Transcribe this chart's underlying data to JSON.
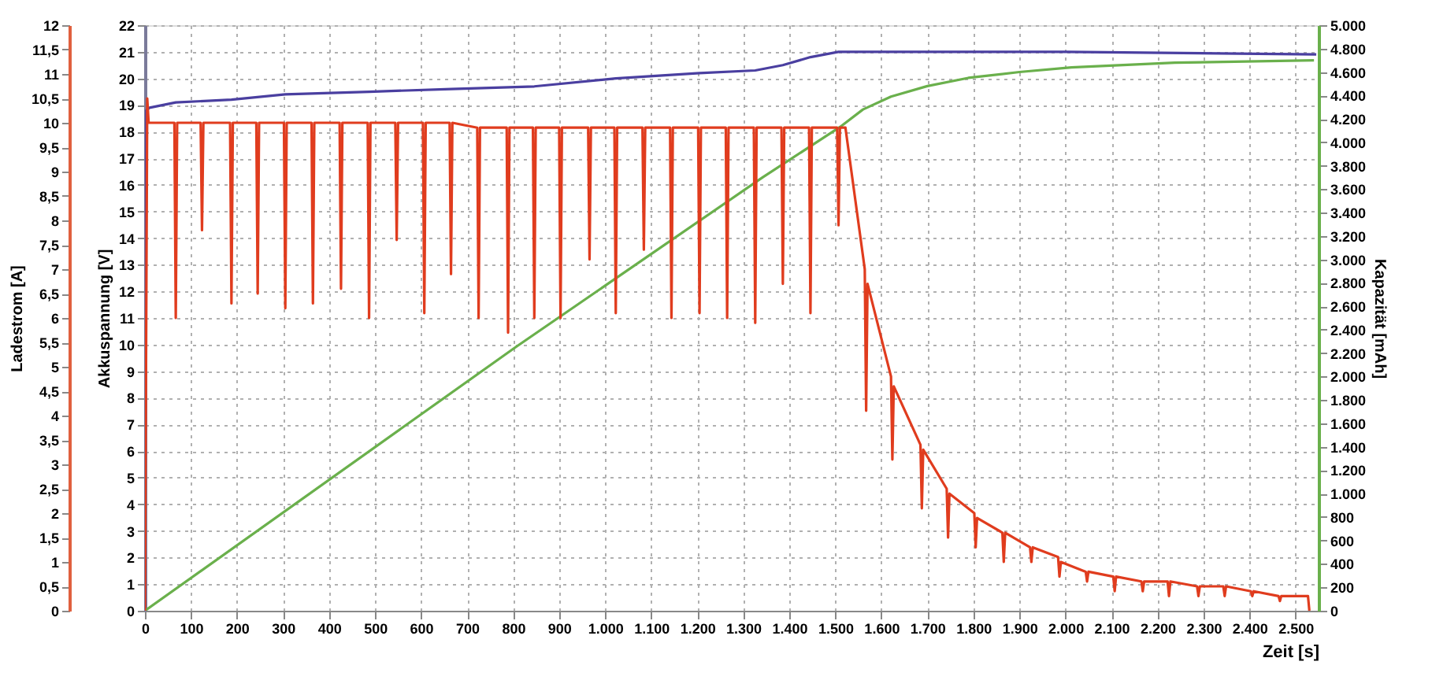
{
  "chart_data": {
    "type": "line",
    "xlabel": "Zeit [s]",
    "ylabel": "Akkuspannung [V]",
    "y2label": "Kapazität [mAh]",
    "y3label": "Ladestrom [A]",
    "grid": true,
    "xlim": [
      0,
      2550
    ],
    "xticks": [
      0,
      100,
      200,
      300,
      400,
      500,
      600,
      700,
      800,
      900,
      {
        "value": 1000,
        "label": "1.000"
      },
      {
        "value": 1100,
        "label": "1.100"
      },
      {
        "value": 1200,
        "label": "1.200"
      },
      {
        "value": 1300,
        "label": "1.300"
      },
      {
        "value": 1400,
        "label": "1.400"
      },
      {
        "value": 1500,
        "label": "1.500"
      },
      {
        "value": 1600,
        "label": "1.600"
      },
      {
        "value": 1700,
        "label": "1.700"
      },
      {
        "value": 1800,
        "label": "1.800"
      },
      {
        "value": 1900,
        "label": "1.900"
      },
      {
        "value": 2000,
        "label": "2.000"
      },
      {
        "value": 2100,
        "label": "2.100"
      },
      {
        "value": 2200,
        "label": "2.200"
      },
      {
        "value": 2300,
        "label": "2.300"
      },
      {
        "value": 2400,
        "label": "2.400"
      },
      {
        "value": 2500,
        "label": "2.500"
      }
    ],
    "ylim": [
      0,
      22
    ],
    "yticks": [
      0,
      1,
      2,
      3,
      4,
      5,
      6,
      7,
      8,
      9,
      10,
      11,
      12,
      13,
      14,
      15,
      16,
      17,
      18,
      19,
      20,
      21,
      22
    ],
    "y2lim": [
      0,
      5000
    ],
    "y2ticks": [
      0,
      200,
      400,
      600,
      800,
      {
        "value": 1000,
        "label": "1.000"
      },
      {
        "value": 1200,
        "label": "1.200"
      },
      {
        "value": 1400,
        "label": "1.400"
      },
      {
        "value": 1600,
        "label": "1.600"
      },
      {
        "value": 1800,
        "label": "1.800"
      },
      {
        "value": 2000,
        "label": "2.000"
      },
      {
        "value": 2200,
        "label": "2.200"
      },
      {
        "value": 2400,
        "label": "2.400"
      },
      {
        "value": 2600,
        "label": "2.600"
      },
      {
        "value": 2800,
        "label": "2.800"
      },
      {
        "value": 3000,
        "label": "3.000"
      },
      {
        "value": 3200,
        "label": "3.200"
      },
      {
        "value": 3400,
        "label": "3.400"
      },
      {
        "value": 3600,
        "label": "3.600"
      },
      {
        "value": 3800,
        "label": "3.800"
      },
      {
        "value": 4000,
        "label": "4.000"
      },
      {
        "value": 4200,
        "label": "4.200"
      },
      {
        "value": 4400,
        "label": "4.400"
      },
      {
        "value": 4600,
        "label": "4.600"
      },
      {
        "value": 4800,
        "label": "4.800"
      },
      {
        "value": 5000,
        "label": "5.000"
      }
    ],
    "y3lim": [
      0,
      12
    ],
    "y3ticks": [
      0,
      {
        "value": 0.5,
        "label": "0,5"
      },
      1,
      {
        "value": 1.5,
        "label": "1,5"
      },
      2,
      {
        "value": 2.5,
        "label": "2,5"
      },
      3,
      {
        "value": 3.5,
        "label": "3,5"
      },
      4,
      {
        "value": 4.5,
        "label": "4,5"
      },
      5,
      {
        "value": 5.5,
        "label": "5,5"
      },
      6,
      {
        "value": 6.5,
        "label": "6,5"
      },
      7,
      {
        "value": 7.5,
        "label": "7,5"
      },
      8,
      {
        "value": 8.5,
        "label": "8,5"
      },
      9,
      {
        "value": 9.5,
        "label": "9,5"
      },
      10,
      {
        "value": 10.5,
        "label": "10,5"
      },
      11,
      {
        "value": 11.5,
        "label": "11,5"
      },
      12
    ],
    "series": [
      {
        "axis": "y",
        "color": "#4a3fa0",
        "x": [
          0,
          3,
          10,
          67,
          188,
          305,
          487,
          665,
          846,
          1023,
          1205,
          1326,
          1386,
          1446,
          1507,
          1566,
          2000,
          2545
        ],
        "values": [
          0,
          18.8,
          18.9,
          19.1,
          19.2,
          19.4,
          19.5,
          19.6,
          19.7,
          20.0,
          20.2,
          20.3,
          20.5,
          20.8,
          21.0,
          21.0,
          21.0,
          20.9
        ]
      },
      {
        "axis": "y2",
        "color": "#6ab04c",
        "x": [
          0,
          805,
          1342,
          1510,
          1560,
          1621,
          1700,
          1789,
          1900,
          2013,
          2238,
          2540
        ],
        "values": [
          0,
          2250,
          3700,
          4130,
          4280,
          4390,
          4480,
          4550,
          4600,
          4640,
          4680,
          4700
        ]
      },
      {
        "axis": "y3",
        "color": "#e03c1e",
        "x": [
          0,
          5,
          8,
          64,
          67,
          70,
          121,
          124,
          127,
          185,
          188,
          191,
          242,
          245,
          248,
          302,
          305,
          308,
          362,
          365,
          368,
          423,
          426,
          429,
          484,
          487,
          490,
          544,
          547,
          550,
          604,
          607,
          610,
          662,
          665,
          668,
          722,
          725,
          728,
          786,
          789,
          792,
          843,
          846,
          849,
          900,
          903,
          906,
          963,
          966,
          969,
          1020,
          1023,
          1026,
          1081,
          1084,
          1087,
          1141,
          1144,
          1147,
          1202,
          1205,
          1208,
          1262,
          1265,
          1268,
          1323,
          1326,
          1329,
          1383,
          1386,
          1389,
          1443,
          1446,
          1449,
          1504,
          1507,
          1510,
          1522,
          1564,
          1567,
          1570,
          1621,
          1624,
          1627,
          1685,
          1688,
          1691,
          1742,
          1745,
          1748,
          1802,
          1805,
          1808,
          1863,
          1866,
          1869,
          1923,
          1926,
          1929,
          1984,
          1987,
          1990,
          2044,
          2047,
          2050,
          2104,
          2107,
          2110,
          2165,
          2168,
          2171,
          2222,
          2225,
          2228,
          2286,
          2289,
          2292,
          2343,
          2346,
          2349,
          2403,
          2406,
          2409,
          2463,
          2466,
          2469,
          2527,
          2530
        ],
        "values": [
          0,
          10.5,
          10.0,
          10.0,
          6.0,
          10.0,
          10.0,
          7.8,
          10.0,
          10.0,
          6.3,
          10.0,
          10.0,
          6.5,
          10.0,
          10.0,
          6.2,
          10.0,
          10.0,
          6.3,
          10.0,
          10.0,
          6.6,
          10.0,
          10.0,
          6.0,
          10.0,
          10.0,
          7.6,
          10.0,
          10.0,
          6.1,
          10.0,
          10.0,
          6.9,
          10.0,
          9.9,
          6.0,
          9.9,
          9.9,
          5.7,
          9.9,
          9.9,
          6.0,
          9.9,
          9.9,
          6.0,
          9.9,
          9.9,
          7.2,
          9.9,
          9.9,
          6.1,
          9.9,
          9.9,
          7.4,
          9.9,
          9.9,
          6.0,
          9.9,
          9.9,
          6.1,
          9.9,
          9.9,
          6.0,
          9.9,
          9.9,
          5.9,
          9.9,
          9.9,
          6.7,
          9.9,
          9.9,
          6.1,
          9.9,
          9.9,
          7.9,
          9.9,
          9.9,
          7.0,
          4.1,
          6.7,
          4.8,
          3.1,
          4.6,
          3.4,
          2.1,
          3.3,
          2.5,
          1.5,
          2.4,
          2.0,
          1.3,
          1.9,
          1.6,
          1.0,
          1.6,
          1.3,
          1.0,
          1.3,
          1.1,
          0.7,
          1.0,
          0.8,
          0.6,
          0.8,
          0.7,
          0.4,
          0.7,
          0.6,
          0.4,
          0.6,
          0.6,
          0.3,
          0.6,
          0.5,
          0.3,
          0.5,
          0.5,
          0.3,
          0.5,
          0.4,
          0.3,
          0.4,
          0.3,
          0.2,
          0.3,
          0.3,
          0
        ]
      }
    ]
  }
}
